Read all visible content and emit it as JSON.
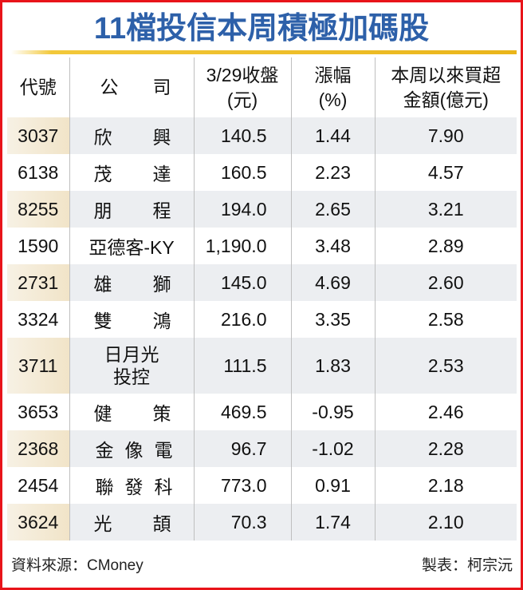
{
  "title": "11檔投信本周積極加碼股",
  "columns": [
    "代號",
    "公　司",
    "3/29收盤(元)",
    "漲幅(%)",
    "本周以來買超金額(億元)"
  ],
  "header": {
    "code": "代號",
    "company_a": "公",
    "company_b": "司",
    "close_1": "3/29收盤",
    "close_2": "(元)",
    "chg_1": "漲幅",
    "chg_2": "(%)",
    "buy_1": "本周以來買超",
    "buy_2": "金額(億元)"
  },
  "rows": [
    {
      "code": "3037",
      "company": "欣興",
      "close": "140.5",
      "change": "1.44",
      "buy": "7.90"
    },
    {
      "code": "6138",
      "company": "茂達",
      "close": "160.5",
      "change": "2.23",
      "buy": "4.57"
    },
    {
      "code": "8255",
      "company": "朋程",
      "close": "194.0",
      "change": "2.65",
      "buy": "3.21"
    },
    {
      "code": "1590",
      "company": "亞德客-KY",
      "close": "1,190.0",
      "change": "3.48",
      "buy": "2.89"
    },
    {
      "code": "2731",
      "company": "雄獅",
      "close": "145.0",
      "change": "4.69",
      "buy": "2.60"
    },
    {
      "code": "3324",
      "company": "雙鴻",
      "close": "216.0",
      "change": "3.35",
      "buy": "2.58"
    },
    {
      "code": "3711",
      "company": "日月光投控",
      "close": "111.5",
      "change": "1.83",
      "buy": "2.53"
    },
    {
      "code": "3653",
      "company": "健策",
      "close": "469.5",
      "change": "-0.95",
      "buy": "2.46"
    },
    {
      "code": "2368",
      "company": "金像電",
      "close": "96.7",
      "change": "-1.02",
      "buy": "2.28"
    },
    {
      "code": "2454",
      "company": "聯發科",
      "close": "773.0",
      "change": "0.91",
      "buy": "2.18"
    },
    {
      "code": "3624",
      "company": "光頡",
      "close": "70.3",
      "change": "1.74",
      "buy": "2.10"
    }
  ],
  "source": "資料來源：CMoney",
  "credit": "製表：柯宗沅",
  "colors": {
    "title": "#2d60a9",
    "border": "#e8141a",
    "rule": "#eab51a"
  }
}
